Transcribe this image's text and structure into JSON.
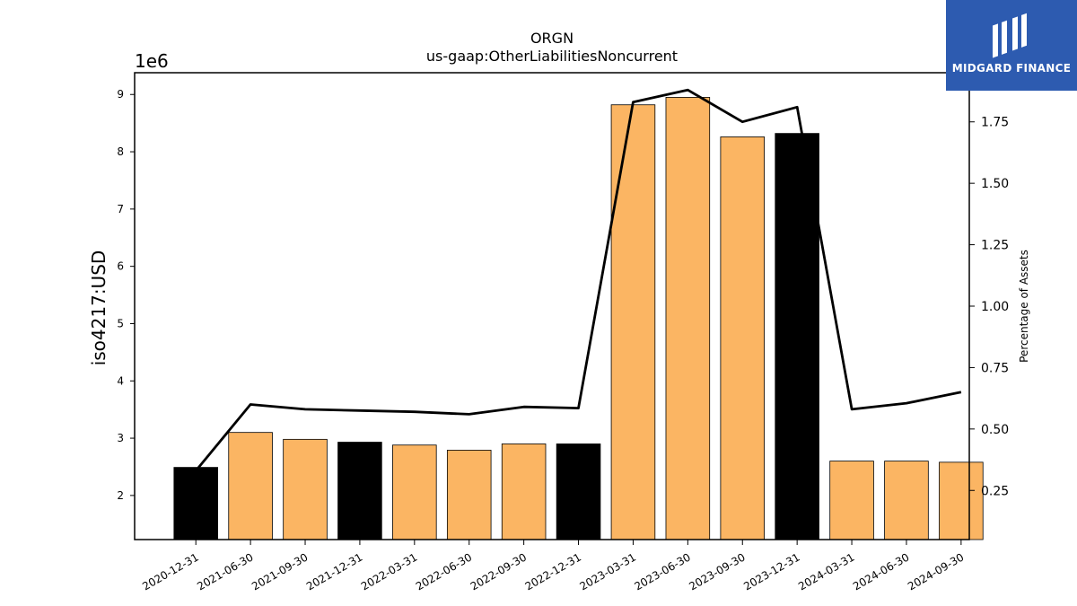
{
  "chart_data": {
    "type": "bar+line",
    "title": "ORGN",
    "subtitle": "us-gaap:OtherLiabilitiesNoncurrent",
    "ylabel": "iso4217:USD",
    "y_scale_label": "1e6",
    "y2label": "Percentage of Assets",
    "categories": [
      "2020-12-31",
      "2021-06-30",
      "2021-09-30",
      "2021-12-31",
      "2022-03-31",
      "2022-06-30",
      "2022-09-30",
      "2022-12-31",
      "2023-03-31",
      "2023-06-30",
      "2023-09-30",
      "2023-12-31",
      "2024-03-31",
      "2024-06-30",
      "2024-09-30"
    ],
    "bar_values_millions": [
      2.49,
      3.1,
      2.98,
      2.93,
      2.88,
      2.79,
      2.9,
      2.9,
      8.82,
      8.95,
      8.26,
      8.32,
      2.6,
      2.6,
      2.58
    ],
    "bar_highlight": [
      true,
      false,
      false,
      true,
      false,
      false,
      false,
      true,
      false,
      false,
      false,
      true,
      false,
      false,
      false
    ],
    "line_values_pct": [
      0.33,
      0.6,
      0.58,
      0.575,
      0.57,
      0.56,
      0.59,
      0.585,
      1.83,
      1.88,
      1.75,
      1.81,
      0.58,
      0.605,
      0.65
    ],
    "ylim": [
      1.23,
      9.38
    ],
    "y2lim": [
      0.05,
      1.95
    ],
    "yticks": [
      2,
      3,
      4,
      5,
      6,
      7,
      8,
      9
    ],
    "y2ticks": [
      "0.25",
      "0.50",
      "0.75",
      "1.00",
      "1.25",
      "1.50",
      "1.75"
    ],
    "colors": {
      "bar": "#fbb563",
      "highlight_bar": "#000000",
      "line": "#000000"
    },
    "grid": false
  },
  "logo": {
    "text": "MIDGARD FINANCE",
    "color": "#2d5bb0"
  }
}
